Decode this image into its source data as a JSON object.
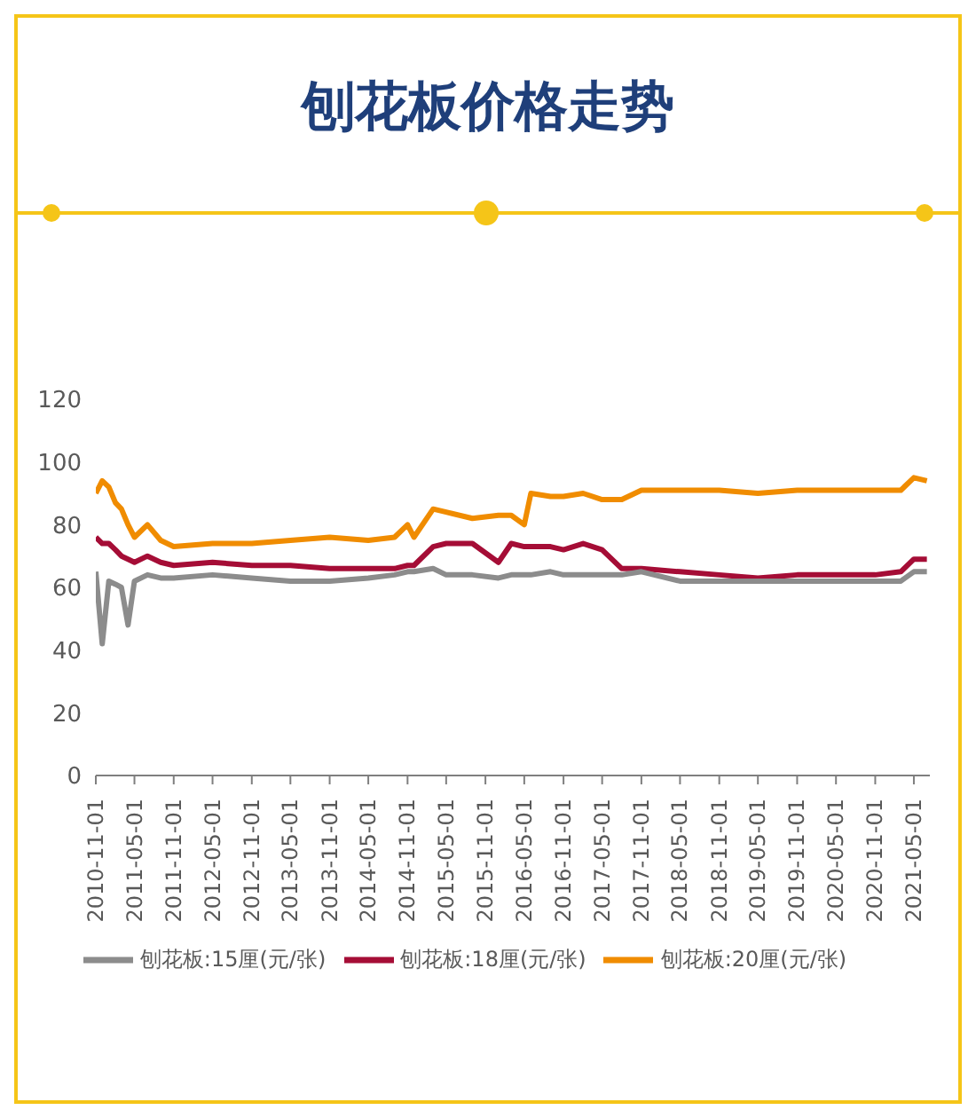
{
  "chart_data": {
    "type": "line",
    "title": "刨花板价格走势",
    "x": [
      "2010-11",
      "2010-12",
      "2011-01",
      "2011-02",
      "2011-03",
      "2011-04",
      "2011-05",
      "2011-07",
      "2011-09",
      "2011-11",
      "2012-05",
      "2012-11",
      "2013-05",
      "2013-11",
      "2014-05",
      "2014-09",
      "2014-11",
      "2014-12",
      "2015-03",
      "2015-05",
      "2015-09",
      "2016-01",
      "2016-03",
      "2016-05",
      "2016-06",
      "2016-09",
      "2016-11",
      "2017-02",
      "2017-05",
      "2017-08",
      "2017-11",
      "2018-05",
      "2018-11",
      "2019-05",
      "2019-11",
      "2020-05",
      "2020-11",
      "2021-03",
      "2021-05",
      "2021-07"
    ],
    "series": [
      {
        "name": "刨花板:20厘(元/张)",
        "color": "#f08c00",
        "values": [
          90,
          94,
          92,
          87,
          85,
          80,
          76,
          80,
          75,
          73,
          74,
          74,
          75,
          76,
          75,
          76,
          80,
          76,
          85,
          84,
          82,
          83,
          83,
          80,
          90,
          89,
          89,
          90,
          88,
          88,
          91,
          91,
          91,
          90,
          91,
          91,
          91,
          91,
          95,
          94
        ]
      },
      {
        "name": "刨花板:18厘(元/张)",
        "color": "#a50d36",
        "values": [
          76,
          74,
          74,
          72,
          70,
          69,
          68,
          70,
          68,
          67,
          68,
          67,
          67,
          66,
          66,
          66,
          67,
          67,
          73,
          74,
          74,
          68,
          74,
          73,
          73,
          73,
          72,
          74,
          72,
          66,
          66,
          65,
          64,
          63,
          64,
          64,
          64,
          65,
          69,
          69
        ]
      },
      {
        "name": "刨花板:15厘(元/张)",
        "color": "#8c8c8c",
        "values": [
          65,
          42,
          62,
          61,
          60,
          48,
          62,
          64,
          63,
          63,
          64,
          63,
          62,
          62,
          63,
          64,
          65,
          65,
          66,
          64,
          64,
          63,
          64,
          64,
          64,
          65,
          64,
          64,
          64,
          64,
          65,
          62,
          62,
          62,
          62,
          62,
          62,
          62,
          65,
          65
        ]
      }
    ],
    "xlim": [
      "2010-11-01",
      "2021-07-15"
    ],
    "xticks": [
      "2010-11-01",
      "2011-05-01",
      "2011-11-01",
      "2012-05-01",
      "2012-11-01",
      "2013-05-01",
      "2013-11-01",
      "2014-05-01",
      "2014-11-01",
      "2015-05-01",
      "2015-11-01",
      "2016-05-01",
      "2016-11-01",
      "2017-05-01",
      "2017-11-01",
      "2018-05-01",
      "2018-11-01",
      "2019-05-01",
      "2019-11-01",
      "2020-05-01",
      "2020-11-01",
      "2021-05-01"
    ],
    "ylim": [
      0,
      120
    ],
    "yticks": [
      0,
      20,
      40,
      60,
      80,
      100,
      120
    ],
    "grid": false,
    "legend": "bottom",
    "marker": "none",
    "line_style": "solid"
  }
}
